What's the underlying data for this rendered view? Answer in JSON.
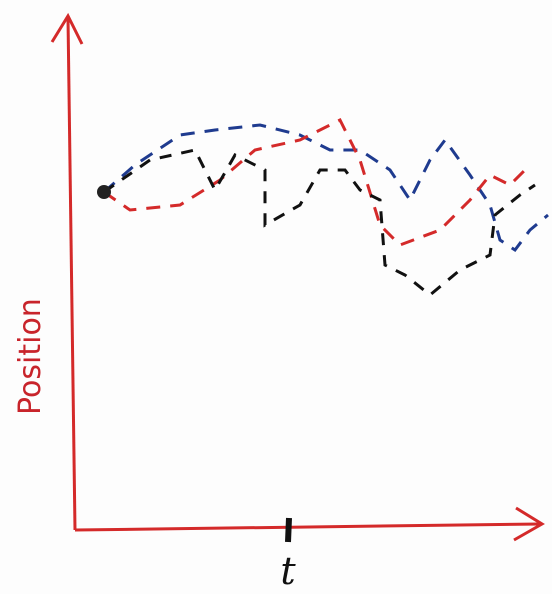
{
  "axes": {
    "y_label": "Position",
    "x_label": "t"
  }
}
